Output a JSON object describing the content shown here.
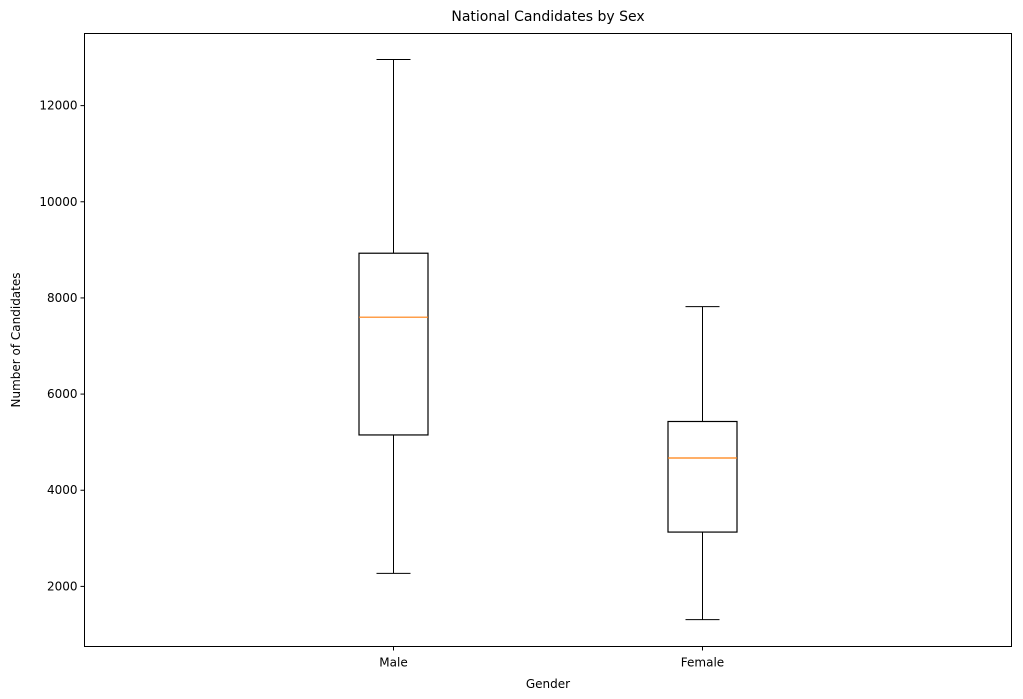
{
  "chart_data": {
    "type": "box",
    "title": "National Candidates by Sex",
    "xlabel": "Gender",
    "ylabel": "Number of Candidates",
    "categories": [
      "Male",
      "Female"
    ],
    "series": [
      {
        "category": "Male",
        "whisker_low": 2270,
        "q1": 5150,
        "median": 7600,
        "q3": 8930,
        "whisker_high": 12960
      },
      {
        "category": "Female",
        "whisker_low": 1310,
        "q1": 3130,
        "median": 4670,
        "q3": 5430,
        "whisker_high": 7820
      }
    ],
    "ylim": [
      750,
      13500
    ],
    "yticks": [
      2000,
      4000,
      6000,
      8000,
      10000,
      12000
    ],
    "grid": false,
    "colors": {
      "box": "#000000",
      "median": "#ff7f0e"
    }
  }
}
